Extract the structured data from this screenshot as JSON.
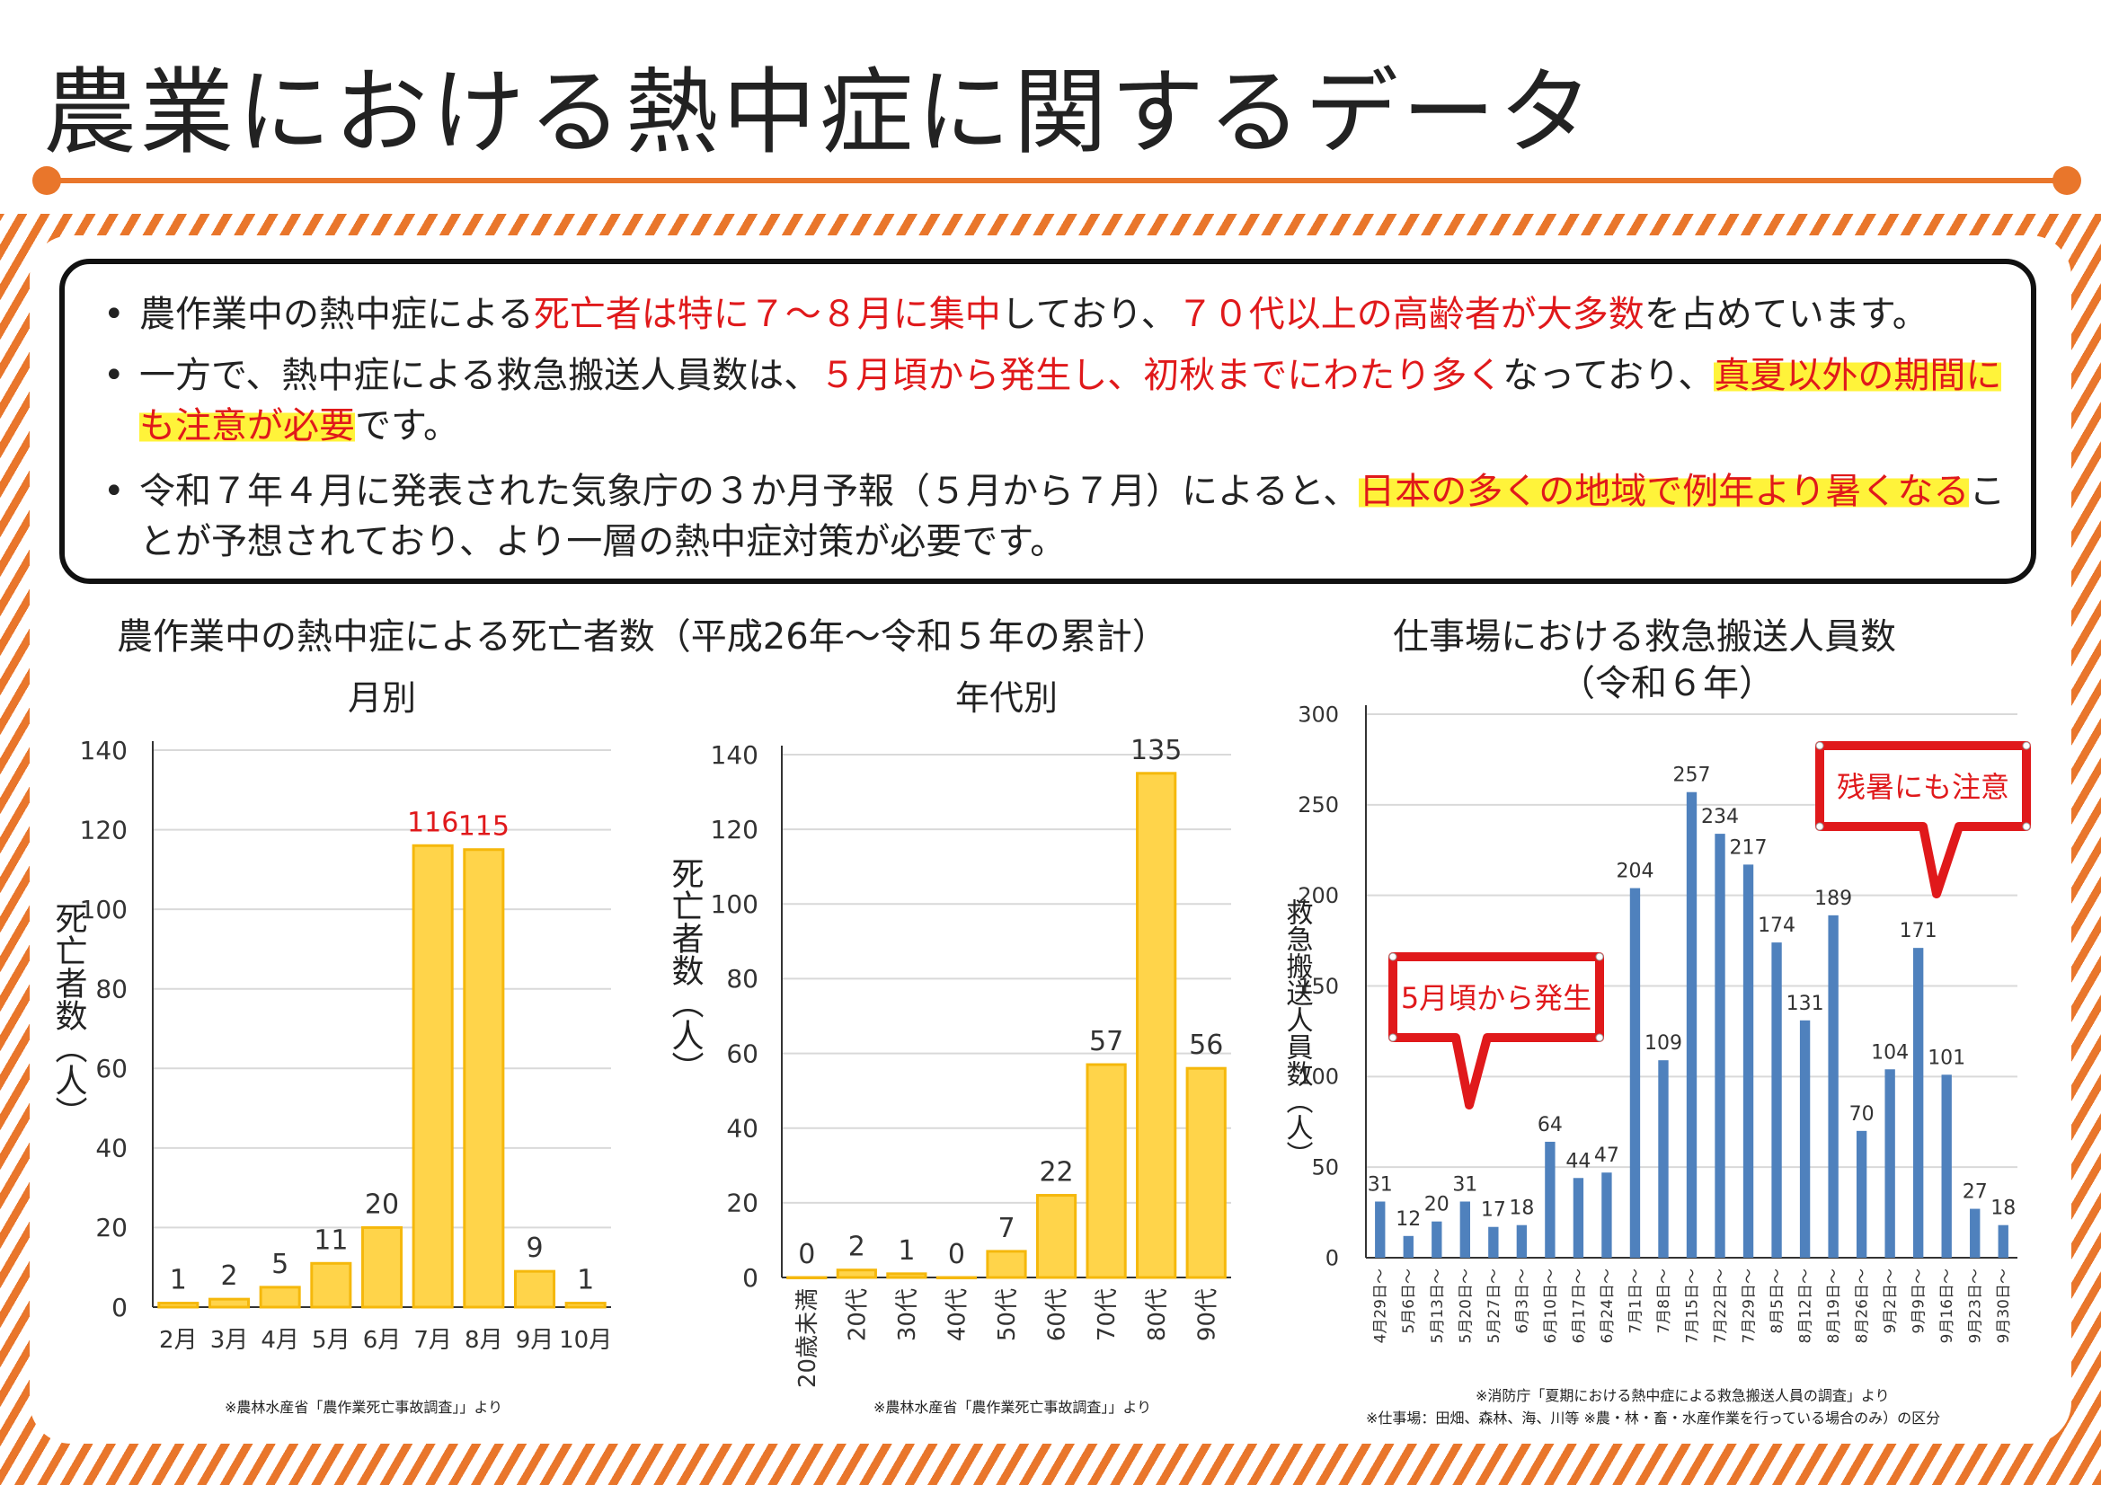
{
  "page": {
    "title": "農業における熱中症に関するデータ",
    "accent": "#e9762b"
  },
  "notes": [
    {
      "segments": [
        {
          "text": "農作業中の熱中症による",
          "style": "normal"
        },
        {
          "text": "死亡者は特に７～８月に集中",
          "style": "red"
        },
        {
          "text": "しており、",
          "style": "normal"
        },
        {
          "text": "７０代以上の高齢者が大多数",
          "style": "red"
        },
        {
          "text": "を占めています。",
          "style": "normal"
        }
      ]
    },
    {
      "segments": [
        {
          "text": "一方で、熱中症による救急搬送人員数は、",
          "style": "normal"
        },
        {
          "text": "５月頃から発生し、初秋までにわたり多く",
          "style": "red"
        },
        {
          "text": "なっており、",
          "style": "normal"
        },
        {
          "text": "真夏以外の期間にも注意が必要",
          "style": "red-highlight"
        },
        {
          "text": "です。",
          "style": "normal"
        }
      ]
    },
    {
      "segments": [
        {
          "text": "令和７年４月に発表された気象庁の３か月予報（５月から７月）によると、",
          "style": "normal"
        },
        {
          "text": "日本の多くの地域で例年より暑くなる",
          "style": "red-highlight"
        },
        {
          "text": "ことが予想されており、より一層の熱中症対策が必要です。",
          "style": "normal"
        }
      ]
    }
  ],
  "sections": {
    "left_title": "農作業中の熱中症による死亡者数（平成26年～令和５年の累計）",
    "right_title_1": "仕事場における救急搬送人員数",
    "right_title_2": "（令和６年）",
    "left_source": "※農林水産省「農作業死亡事故調査」」より",
    "mid_source": "※農林水産省「農作業死亡事故調査」」より",
    "right_source_1": "※消防庁「夏期における熱中症による救急搬送人員の調査」より",
    "right_source_2": "※仕事場：田畑、森林、海、川等 ※農・林・畜・水産作業を行っている場合のみ）の区分"
  },
  "colors": {
    "bar_yellow": "#ffd44a",
    "bar_yellow_stroke": "#f5b80c",
    "bar_blue": "#4f81bd",
    "highlight_red": "#e0191b",
    "grid": "#d9d9d9"
  },
  "chart_data": [
    {
      "type": "bar",
      "title": "月別",
      "ylabel": "死亡者数（人）",
      "categories": [
        "2月",
        "3月",
        "4月",
        "5月",
        "6月",
        "7月",
        "8月",
        "9月",
        "10月"
      ],
      "values": [
        1,
        2,
        5,
        11,
        20,
        116,
        115,
        9,
        1
      ],
      "ylim": [
        0,
        140
      ],
      "yticks": [
        0,
        20,
        40,
        60,
        80,
        100,
        120,
        140
      ],
      "highlighted_labels": [
        "7月",
        "8月"
      ],
      "grid": true
    },
    {
      "type": "bar",
      "title": "年代別",
      "ylabel": "死亡者数（人）",
      "categories": [
        "20歳未満",
        "20代",
        "30代",
        "40代",
        "50代",
        "60代",
        "70代",
        "80代",
        "90代"
      ],
      "values": [
        0,
        2,
        1,
        0,
        7,
        22,
        57,
        135,
        56
      ],
      "ylim": [
        0,
        140
      ],
      "yticks": [
        0,
        20,
        40,
        60,
        80,
        100,
        120,
        140
      ],
      "grid": true
    },
    {
      "type": "bar",
      "ylabel": "救急搬送人員数（人）",
      "categories": [
        "4月29日～",
        "5月6日～",
        "5月13日～",
        "5月20日～",
        "5月27日～",
        "6月3日～",
        "6月10日～",
        "6月17日～",
        "6月24日～",
        "7月1日～",
        "7月8日～",
        "7月15日～",
        "7月22日～",
        "7月29日～",
        "8月5日～",
        "8月12日～",
        "8月19日～",
        "8月26日～",
        "9月2日～",
        "9月9日～",
        "9月16日～",
        "9月23日～",
        "9月30日～"
      ],
      "values": [
        31,
        12,
        20,
        31,
        17,
        18,
        64,
        44,
        47,
        204,
        109,
        257,
        234,
        217,
        174,
        131,
        189,
        70,
        104,
        171,
        101,
        27,
        18
      ],
      "ylim": [
        0,
        300
      ],
      "yticks": [
        0,
        50,
        100,
        150,
        200,
        250,
        300
      ],
      "grid": true,
      "annotations": [
        "5月頃から発生",
        "残暑にも注意"
      ]
    }
  ]
}
